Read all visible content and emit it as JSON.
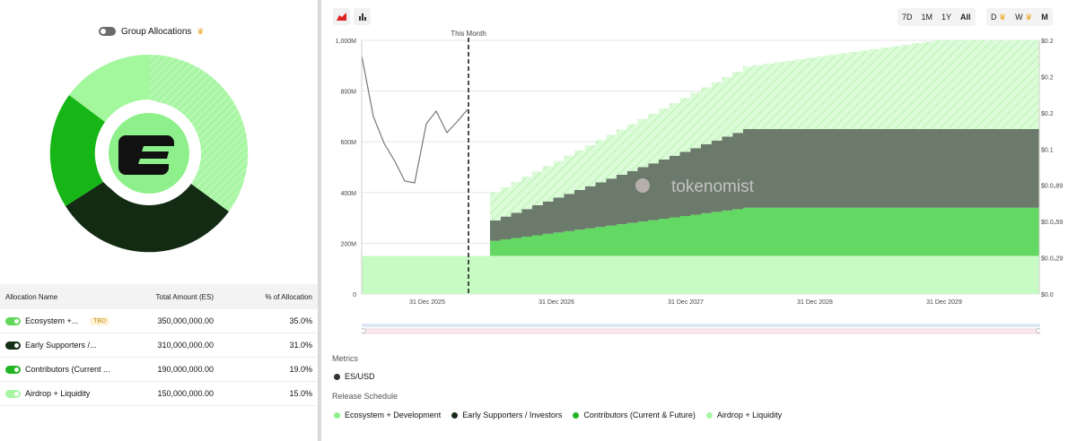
{
  "group_toggle": {
    "label": "Group Allocations"
  },
  "table": {
    "headers": {
      "name": "Allocation Name",
      "amount": "Total Amount (ES)",
      "pct": "% of Allocation"
    },
    "rows": [
      {
        "name": "Ecosystem +...",
        "badge": "TBD",
        "amount": "350,000,000.00",
        "pct": "35.0%",
        "color": "#8ef08a"
      },
      {
        "name": "Early Supporters /...",
        "badge": "",
        "amount": "310,000,000.00",
        "pct": "31.0%",
        "color": "#163016"
      },
      {
        "name": "Contributors (Current ...",
        "badge": "",
        "amount": "190,000,000.00",
        "pct": "19.0%",
        "color": "#22b522"
      },
      {
        "name": "Airdrop + Liquidity",
        "badge": "",
        "amount": "150,000,000.00",
        "pct": "15.0%",
        "color": "#a8f5a3"
      }
    ]
  },
  "toolbar": {
    "ranges": [
      "7D",
      "1M",
      "1Y",
      "All"
    ],
    "active_range": "All",
    "intervals": [
      "D",
      "W",
      "M"
    ],
    "active_interval": "M",
    "chart_type_icons": [
      "area-chart-icon",
      "bar-chart-icon"
    ]
  },
  "colors": {
    "ecosystem": "#a6f59f",
    "early": "#1b2b1b",
    "contributors": "#22b522",
    "airdrop": "#c8fbc4",
    "price": "#666666"
  },
  "chart_data": {
    "type": "area",
    "annotation": "This Month",
    "watermark": "tokenomist",
    "x_ticks": [
      "31 Dec 2025",
      "31 Dec 2026",
      "31 Dec 2027",
      "31 Dec 2028",
      "31 Dec 2029"
    ],
    "y_ticks": [
      "0",
      "200M",
      "400M",
      "600M",
      "800M",
      "1,000M"
    ],
    "y2_ticks": [
      "$0.0",
      "$0.0₄29",
      "$0.0₄59",
      "$0.0₄89",
      "$0.1",
      "$0.2",
      "$0.2",
      "$0.2"
    ],
    "ylim": [
      0,
      1000000000
    ],
    "series": [
      {
        "name": "Airdrop + Liquidity",
        "values_start": 150000000,
        "values_end": 150000000
      },
      {
        "name": "Contributors (Current & Future)",
        "values_start": 60000000,
        "values_end": 190000000
      },
      {
        "name": "Early Supporters / Investors",
        "values_start": 80000000,
        "values_end": 310000000
      },
      {
        "name": "Ecosystem + Development",
        "values_start": 110000000,
        "values_end": 350000000
      }
    ]
  },
  "metrics": {
    "title": "Metrics",
    "item": "ES/USD"
  },
  "release_schedule": {
    "title": "Release Schedule",
    "items": [
      {
        "label": "Ecosystem + Development",
        "color": "#8ef08a"
      },
      {
        "label": "Early Supporters / Investors",
        "color": "#1b2b1b"
      },
      {
        "label": "Contributors (Current & Future)",
        "color": "#22b522"
      },
      {
        "label": "Airdrop + Liquidity",
        "color": "#a8f5a3"
      }
    ]
  }
}
